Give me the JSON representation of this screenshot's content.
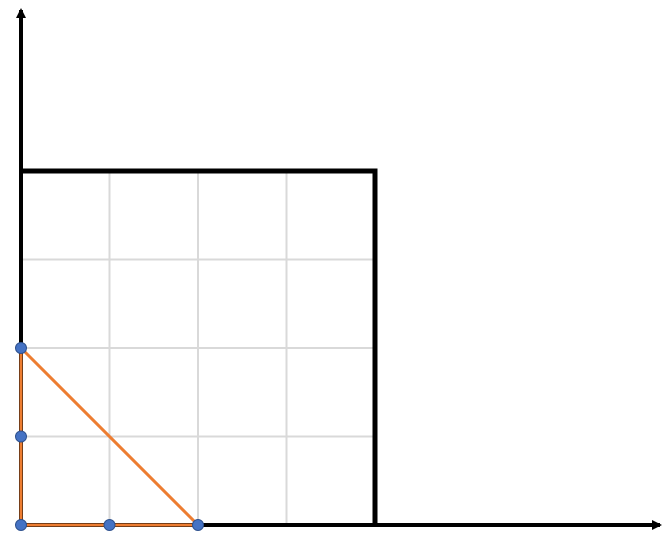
{
  "diagram": {
    "grid": {
      "columns": 4,
      "rows": 4,
      "gridline_color": "#d9d9d9"
    },
    "colors": {
      "axis": "#000000",
      "square_border": "#000000",
      "triangle": "#ed7d31",
      "points": "#4472c4",
      "point_stroke": "#2f528f"
    },
    "square": {
      "from": [
        0,
        0
      ],
      "to": [
        4,
        4
      ]
    },
    "triangle": {
      "vertices": [
        [
          0,
          0
        ],
        [
          2,
          0
        ],
        [
          0,
          2
        ]
      ]
    },
    "points": [
      [
        0,
        0
      ],
      [
        1,
        0
      ],
      [
        2,
        0
      ],
      [
        0,
        1
      ],
      [
        0,
        2
      ]
    ]
  }
}
